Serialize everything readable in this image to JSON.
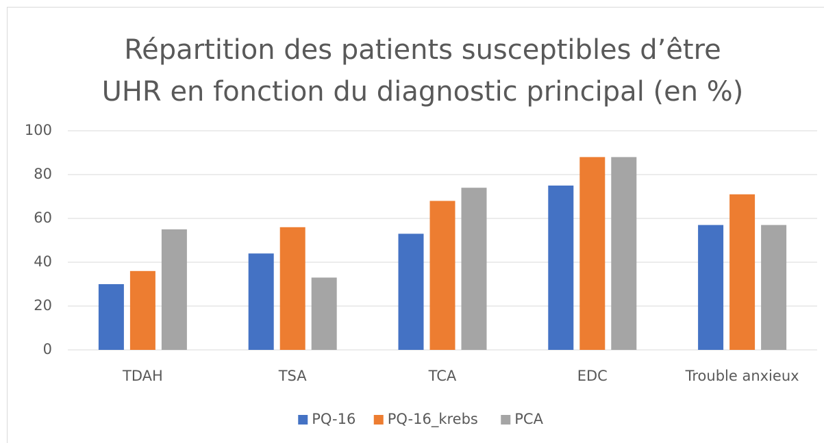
{
  "chart_data": {
    "type": "bar",
    "title": [
      "Répartition des patients susceptibles d’être",
      "UHR en fonction du diagnostic principal (en %)"
    ],
    "categories": [
      "TDAH",
      "TSA",
      "TCA",
      "EDC",
      "Trouble anxieux"
    ],
    "series": [
      {
        "name": "PQ-16",
        "color": "#4472c4",
        "values": [
          30,
          44,
          53,
          75,
          57
        ]
      },
      {
        "name": "PQ-16_krebs",
        "color": "#ed7d31",
        "values": [
          36,
          56,
          68,
          88,
          71
        ]
      },
      {
        "name": "PCA",
        "color": "#a5a5a5",
        "values": [
          55,
          33,
          74,
          88,
          57
        ]
      }
    ],
    "ylim": [
      0,
      100
    ],
    "yticks": [
      0,
      20,
      40,
      60,
      80,
      100
    ],
    "grid": true,
    "legend": "bottom"
  }
}
